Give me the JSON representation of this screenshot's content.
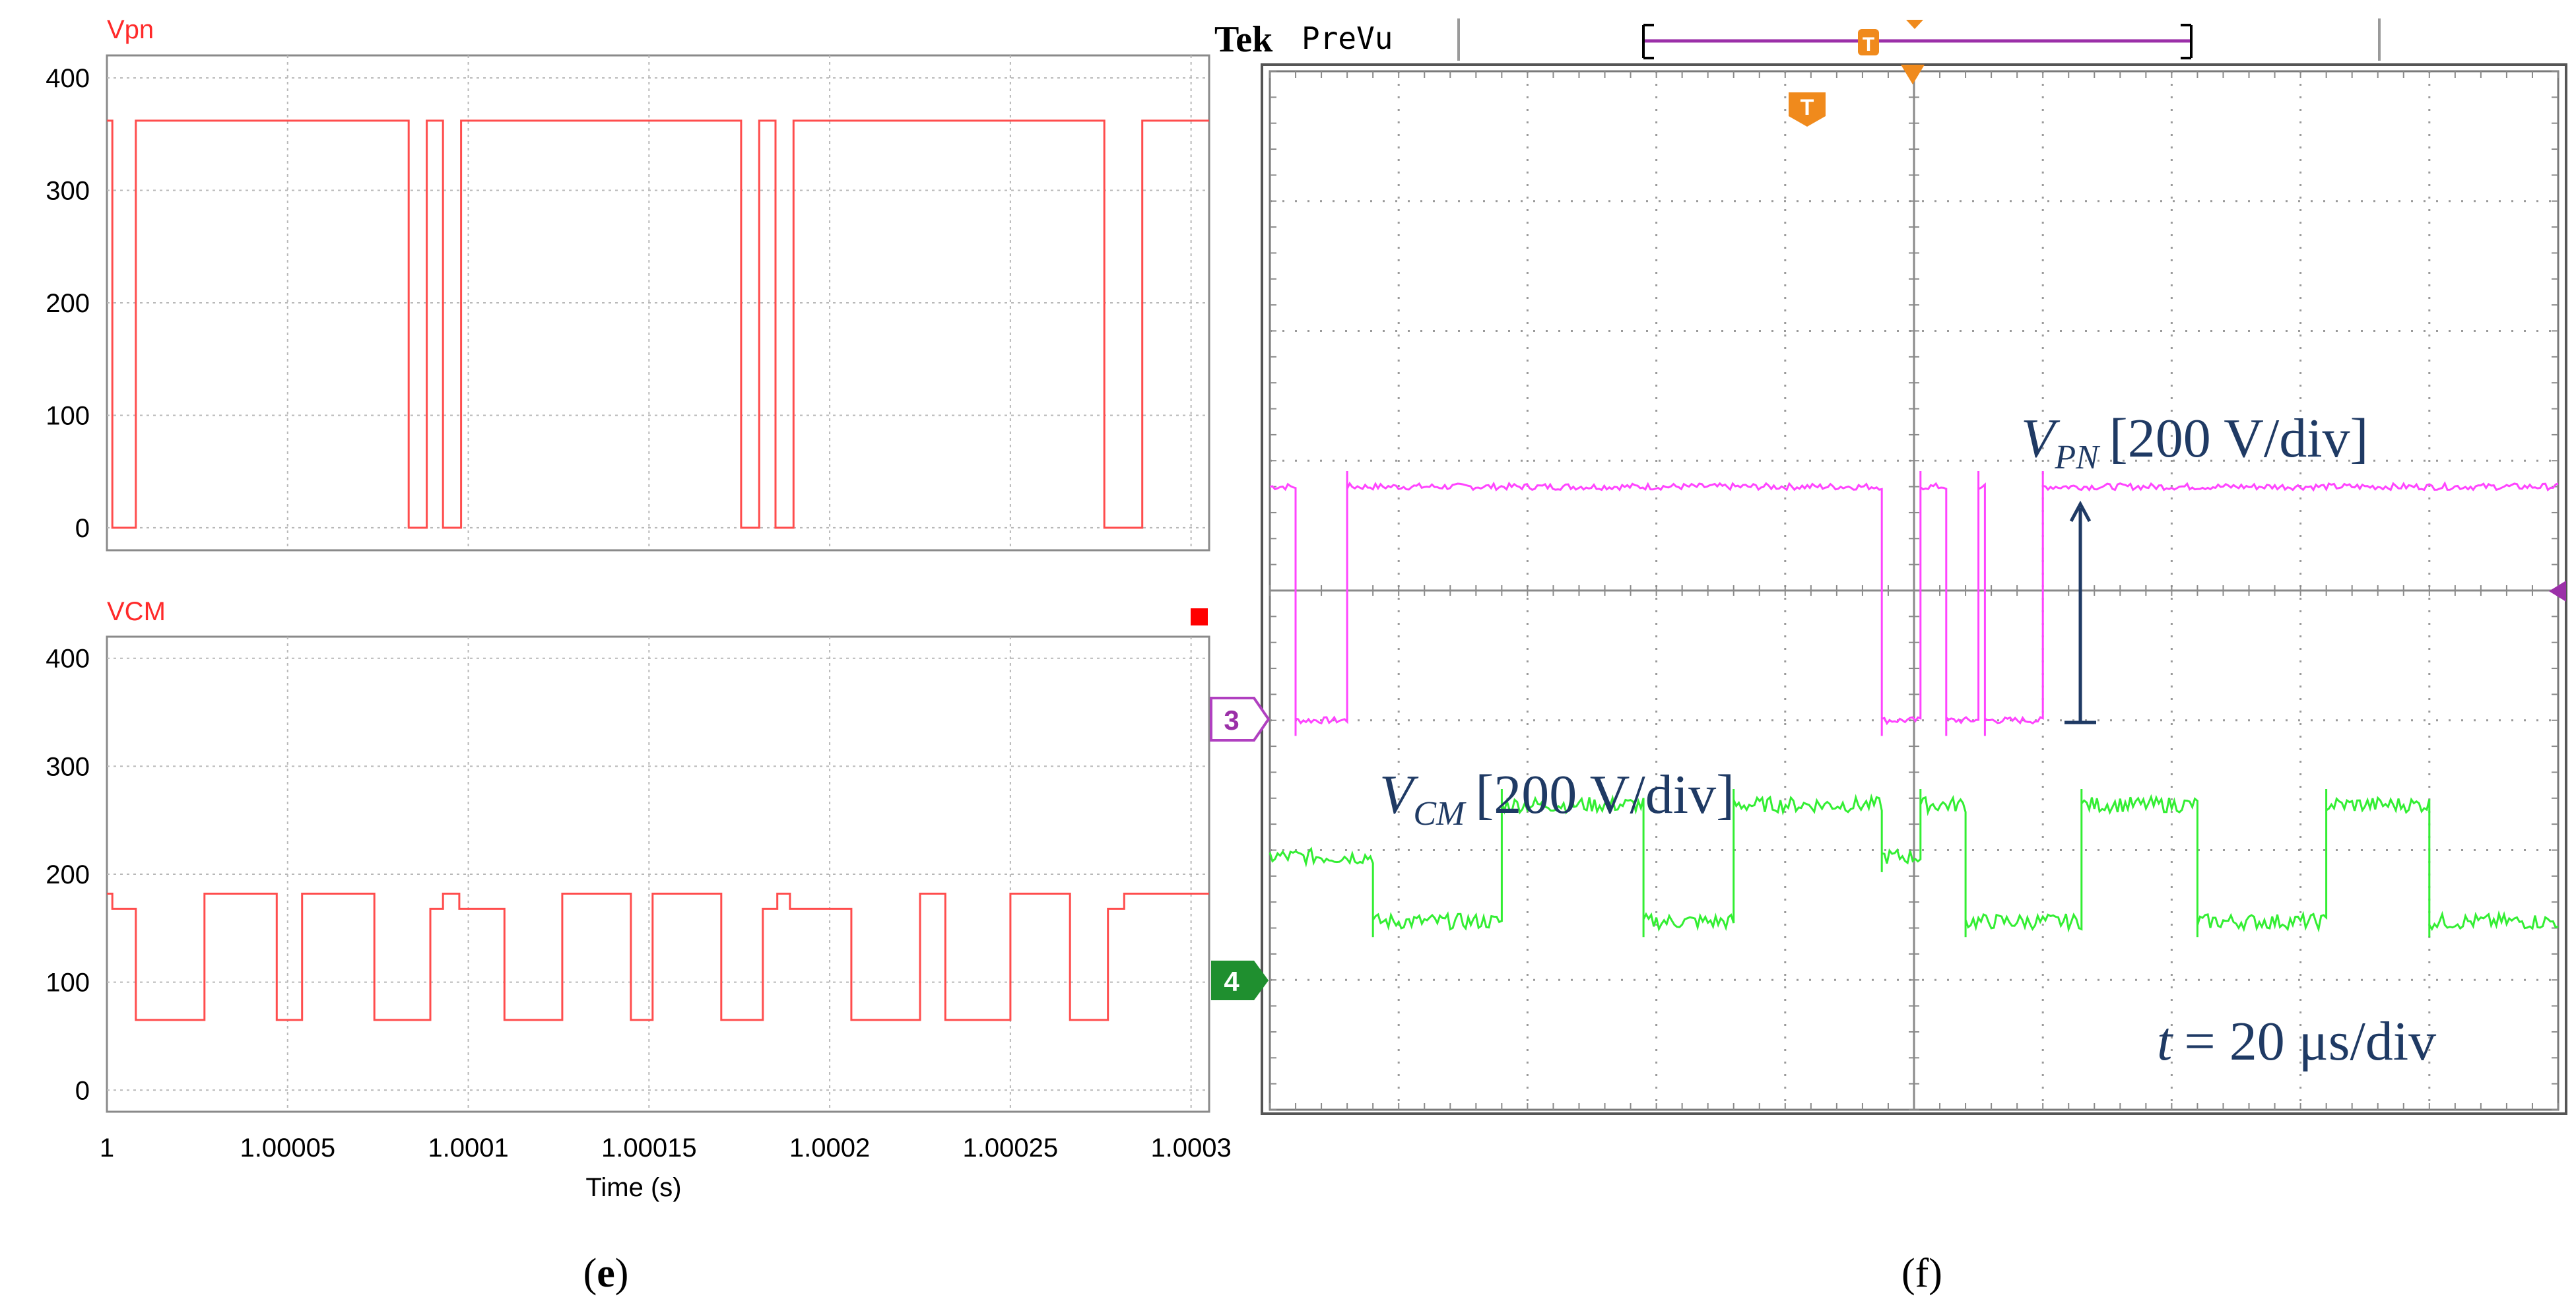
{
  "chart_data": [
    {
      "id": "e_top",
      "type": "line",
      "title": "Vpn",
      "xlim": [
        1.0,
        1.000305
      ],
      "ylim": [
        -20,
        420
      ],
      "yticks": [
        0,
        100,
        200,
        300,
        400
      ],
      "xticks": [
        1.0,
        1.00005,
        1.0001,
        1.00015,
        1.0002,
        1.00025,
        1.0003
      ],
      "series": [
        {
          "name": "Vpn",
          "color": "#ff4d4d",
          "x": [
            1.0,
            1.0000015,
            1.0000015,
            1.0000025,
            1.0000025,
            1.000008,
            1.000008,
            1.0000835,
            1.0000835,
            1.0000885,
            1.0000885,
            1.000093,
            1.000093,
            1.000098,
            1.000098,
            1.0001755,
            1.0001755,
            1.0001805,
            1.0001805,
            1.000185,
            1.000185,
            1.00019,
            1.00019,
            1.000276,
            1.000276,
            1.0002815,
            1.0002815,
            1.0002865,
            1.0002865,
            1.000305
          ],
          "y": [
            362,
            362,
            0,
            0,
            0,
            0,
            362,
            362,
            0,
            0,
            362,
            362,
            0,
            0,
            362,
            362,
            0,
            0,
            362,
            362,
            0,
            0,
            362,
            362,
            0,
            0,
            0,
            0,
            362,
            362
          ]
        }
      ]
    },
    {
      "id": "e_bottom",
      "type": "line",
      "title": "VCM",
      "xlabel": "Time (s)",
      "xlim": [
        1.0,
        1.000305
      ],
      "ylim": [
        -20,
        420
      ],
      "yticks": [
        0,
        100,
        200,
        300,
        400
      ],
      "xticks": [
        1.0,
        1.00005,
        1.0001,
        1.00015,
        1.0002,
        1.00025,
        1.0003
      ],
      "xtick_labels": [
        "1",
        "1.00005",
        "1.0001",
        "1.00015",
        "1.0002",
        "1.00025",
        "1.0003"
      ],
      "series": [
        {
          "name": "VCM",
          "color": "#ff4d4d",
          "x": [
            1.0,
            1.0000015,
            1.0000015,
            1.000008,
            1.000008,
            1.000027,
            1.000027,
            1.000047,
            1.000047,
            1.000054,
            1.000054,
            1.000074,
            1.000074,
            1.0000895,
            1.0000895,
            1.000093,
            1.000093,
            1.0000975,
            1.0000975,
            1.00011,
            1.00011,
            1.000126,
            1.000126,
            1.000145,
            1.000145,
            1.000151,
            1.000151,
            1.00017,
            1.00017,
            1.0001815,
            1.0001815,
            1.0001855,
            1.0001855,
            1.000189,
            1.000189,
            1.000206,
            1.000206,
            1.000225,
            1.000225,
            1.000232,
            1.000232,
            1.00025,
            1.00025,
            1.0002665,
            1.0002665,
            1.000277,
            1.000277,
            1.0002815,
            1.0002815,
            1.000305
          ],
          "y": [
            182,
            182,
            168,
            168,
            65,
            65,
            182,
            182,
            65,
            65,
            182,
            182,
            65,
            65,
            168,
            168,
            182,
            182,
            168,
            168,
            65,
            65,
            182,
            182,
            65,
            65,
            182,
            182,
            65,
            65,
            168,
            168,
            182,
            182,
            168,
            168,
            65,
            65,
            182,
            182,
            65,
            65,
            182,
            182,
            65,
            65,
            168,
            168,
            182,
            182
          ]
        }
      ]
    },
    {
      "id": "f_scope",
      "type": "line",
      "title": "Tek PreVu",
      "xlim": [
        0,
        10
      ],
      "ylim": [
        -4,
        4
      ],
      "grid": "10 x 8 divisions",
      "channel_markers": [
        "3",
        "4"
      ],
      "series": [
        {
          "name": "VPN",
          "channel": "3",
          "color": "#ff44ff",
          "low_div": -1.0,
          "high_div": 0.8,
          "x": [
            0,
            0.2,
            0.2,
            0.6,
            0.6,
            4.75,
            4.75,
            5.05,
            5.05,
            5.25,
            5.25,
            5.5,
            5.5,
            5.55,
            5.55,
            6.0,
            6.0,
            10.0
          ],
          "level": [
            "H",
            "H",
            "L",
            "L",
            "H",
            "H",
            "L",
            "L",
            "H",
            "H",
            "L",
            "L",
            "H",
            "H",
            "L",
            "L",
            "H",
            "H"
          ]
        },
        {
          "name": "VCM",
          "channel": "4",
          "color": "#33ee33",
          "x": [
            0,
            0.8,
            0.8,
            1.8,
            1.8,
            2.9,
            2.9,
            3.6,
            3.6,
            4.75,
            4.75,
            5.05,
            5.05,
            5.4,
            5.4,
            6.3,
            6.3,
            7.2,
            7.2,
            8.2,
            8.2,
            9.0,
            9.0,
            10.0
          ],
          "y_div": [
            -2.05,
            -2.05,
            -2.55,
            -2.55,
            -1.65,
            -1.65,
            -2.55,
            -2.55,
            -1.65,
            -1.65,
            -2.05,
            -2.05,
            -1.65,
            -1.65,
            -2.55,
            -2.55,
            -1.65,
            -1.65,
            -2.55,
            -2.55,
            -1.65,
            -1.65,
            -2.55,
            -2.55
          ]
        }
      ],
      "annotations": {
        "vpn_sym": "V",
        "vpn_sub": "PN",
        "vpn_scale": "[200 V/div]",
        "vcm_sym": "V",
        "vcm_sub": "CM",
        "vcm_scale": "[200 V/div]",
        "time_sym": "t",
        "time_scale": "= 20 μs/div"
      }
    }
  ],
  "labels": {
    "panel_e": "(e)",
    "panel_e_letter": "e",
    "panel_f": "(f)",
    "scope_brand": "Tek",
    "scope_mode": "PreVu",
    "trigger_marker": "T",
    "channel3": "3",
    "channel4": "4"
  },
  "colors": {
    "sim_trace": "#ff4d4d",
    "sim_title": "#ff2a2a",
    "scope_ch3": "#ff44ff",
    "scope_ch4": "#33ee33",
    "trigger": "#f08a1c",
    "annotation": "#1f3a64",
    "marker_purple": "#9b30a8",
    "marker_green": "#1f8f2f"
  }
}
